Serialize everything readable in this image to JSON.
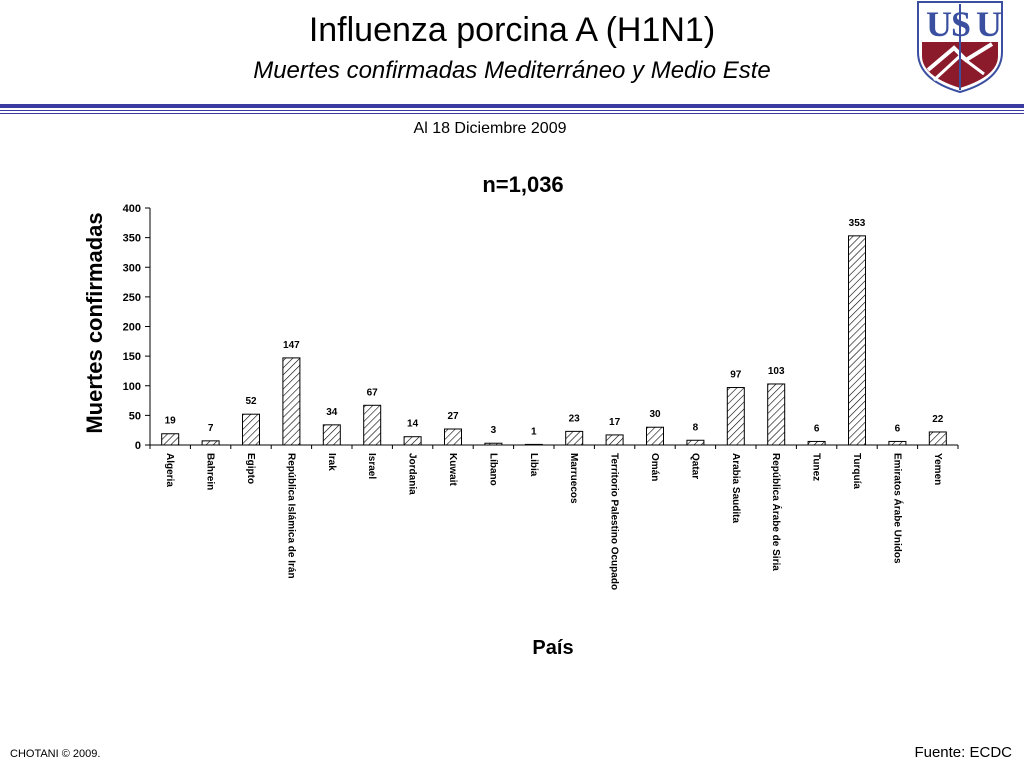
{
  "header": {
    "title": "Influenza porcina A (H1N1)",
    "subtitle": "Muertes confirmadas Mediterráneo y Medio Este",
    "logo_text": "USU"
  },
  "date_label": "Al 18 Diciembre 2009",
  "footer": {
    "left": "CHOTANI © 2009.",
    "right": "Fuente: ECDC"
  },
  "colors": {
    "rule": "#3a3aa0",
    "logo_blue": "#3a4fa0",
    "logo_red": "#8b1a2b"
  },
  "chart_data": {
    "type": "bar",
    "title": "n=1,036",
    "xlabel": "País",
    "ylabel": "Muertes confirmadas",
    "ylim": [
      0,
      400
    ],
    "yticks": [
      0,
      50,
      100,
      150,
      200,
      250,
      300,
      350,
      400
    ],
    "grid": false,
    "bar_fill": "diagonal hatch",
    "categories": [
      "Algeria",
      "Bahrein",
      "Egipto",
      "República Islámica de Irán",
      "Irak",
      "Israel",
      "Jordania",
      "Kuwait",
      "Líbano",
      "Libia",
      "Marruecos",
      "Territorio Palestino Ocupado",
      "Omán",
      "Qatar",
      "Arabia Saudita",
      "República Árabe de Siria",
      "Tunez",
      "Turquía",
      "Emiratos Árabe Unidos",
      "Yemen"
    ],
    "values": [
      19,
      7,
      52,
      147,
      34,
      67,
      14,
      27,
      3,
      1,
      23,
      17,
      30,
      8,
      97,
      103,
      6,
      353,
      6,
      22
    ]
  }
}
